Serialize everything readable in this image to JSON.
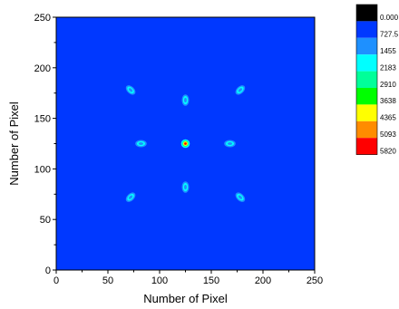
{
  "chart_data": {
    "type": "heatmap",
    "xlabel": "Number of Pixel",
    "ylabel": "Number of Pixel",
    "xlim": [
      0,
      250
    ],
    "ylim": [
      0,
      250
    ],
    "xticks": [
      "0",
      "50",
      "100",
      "150",
      "200",
      "250"
    ],
    "yticks": [
      "0",
      "50",
      "100",
      "150",
      "200",
      "250"
    ],
    "grid": false,
    "legend_position": "right",
    "background_level_color": "#0038ff",
    "colorbar": {
      "levels": [
        "0.000",
        "727.5",
        "1455",
        "2183",
        "2910",
        "3638",
        "4365",
        "5093",
        "5820"
      ],
      "colors": [
        "#000000",
        "#0038ff",
        "#1e90ff",
        "#00ffff",
        "#00ff99",
        "#00ff00",
        "#ffff00",
        "#ff8c00",
        "#ff0000"
      ]
    },
    "spots": [
      {
        "x": 125,
        "y": 125,
        "peak": "high",
        "orientation": "round"
      },
      {
        "x": 125,
        "y": 168,
        "peak": "low",
        "orientation": "vertical"
      },
      {
        "x": 125,
        "y": 82,
        "peak": "low",
        "orientation": "vertical"
      },
      {
        "x": 82,
        "y": 125,
        "peak": "low",
        "orientation": "horizontal"
      },
      {
        "x": 168,
        "y": 125,
        "peak": "low",
        "orientation": "horizontal"
      },
      {
        "x": 72,
        "y": 178,
        "peak": "low",
        "orientation": "diag-down"
      },
      {
        "x": 178,
        "y": 178,
        "peak": "low",
        "orientation": "diag-up"
      },
      {
        "x": 72,
        "y": 72,
        "peak": "low",
        "orientation": "diag-up"
      },
      {
        "x": 178,
        "y": 72,
        "peak": "low",
        "orientation": "diag-down"
      }
    ]
  }
}
